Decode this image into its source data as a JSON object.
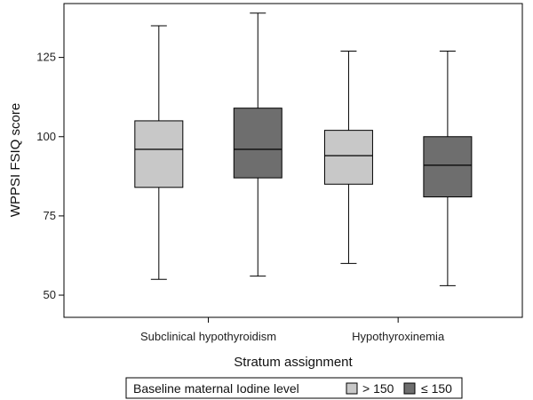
{
  "chart_data": {
    "type": "box",
    "title": "",
    "xlabel": "Stratum assignment",
    "ylabel": "WPPSI FSIQ score",
    "yticks": [
      50,
      75,
      100,
      125
    ],
    "ylim": [
      43,
      142
    ],
    "grid": false,
    "categories": [
      "Subclinical hypothyroidism",
      "Hypothyroxinemia"
    ],
    "legend": {
      "title": "Baseline maternal Iodine level",
      "placement": "bottom",
      "entries": [
        {
          "label": "> 150",
          "color": "#c8c8c8"
        },
        {
          "label": "≤ 150",
          "color": "#6e6e6e"
        }
      ]
    },
    "series": [
      {
        "name": "> 150",
        "color": "#c8c8c8",
        "boxes": [
          {
            "min": 55,
            "q1": 84,
            "median": 96,
            "q3": 105,
            "max": 135
          },
          {
            "min": 60,
            "q1": 85,
            "median": 94,
            "q3": 102,
            "max": 127
          }
        ]
      },
      {
        "name": "≤ 150",
        "color": "#6e6e6e",
        "boxes": [
          {
            "min": 56,
            "q1": 87,
            "median": 96,
            "q3": 109,
            "max": 139
          },
          {
            "min": 53,
            "q1": 81,
            "median": 91,
            "q3": 100,
            "max": 127
          }
        ]
      }
    ]
  }
}
